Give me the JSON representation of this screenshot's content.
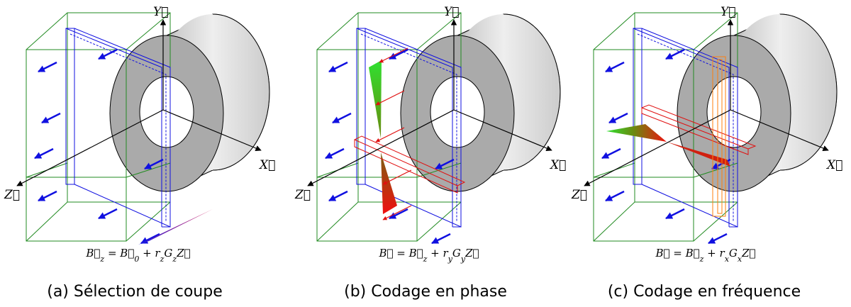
{
  "panels": [
    {
      "axes": {
        "y": "Y⃗",
        "x": "X⃗",
        "z": "Z⃗"
      },
      "equation": [
        "B⃗",
        "z",
        " = B⃗",
        "0",
        " + r",
        "z",
        "G",
        "z",
        "Z⃗"
      ],
      "caption": "(a) Sélection de coupe"
    },
    {
      "axes": {
        "y": "Y⃗",
        "x": "X⃗",
        "z": "Z⃗"
      },
      "equation": [
        "B⃗ = B⃗",
        "z",
        " + r",
        "y",
        "G",
        "y",
        "Z⃗"
      ],
      "caption": "(b) Codage en phase"
    },
    {
      "axes": {
        "y": "Y⃗",
        "x": "X⃗",
        "z": "Z⃗"
      },
      "equation": [
        "B⃗ = B⃗",
        "z",
        " + r",
        "x",
        "G",
        "x",
        "Z⃗"
      ],
      "caption": "(c) Codage en fréquence"
    }
  ]
}
